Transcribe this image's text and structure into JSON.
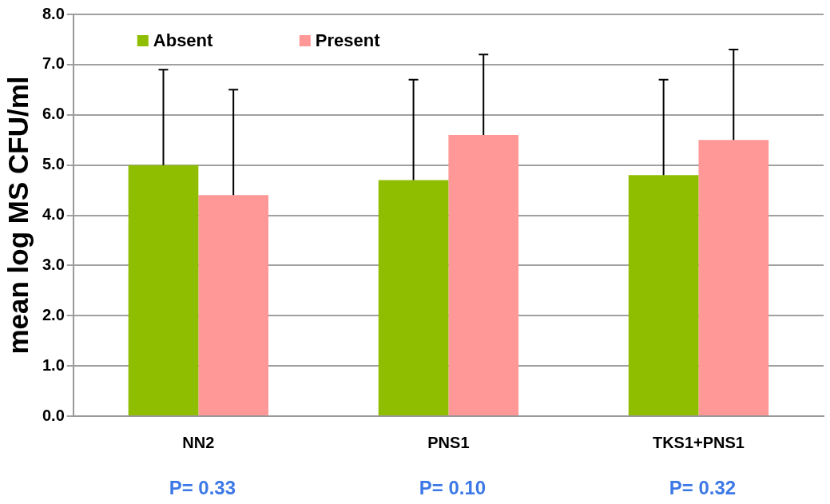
{
  "chart_data": {
    "type": "bar",
    "ylabel": "mean log MS CFU/ml",
    "categories": [
      "NN2",
      "PNS1",
      "TKS1+PNS1"
    ],
    "series": [
      {
        "name": "Absent",
        "color": "#8fbe00",
        "values": [
          5.0,
          4.7,
          4.8
        ],
        "errors": [
          [
            5.0,
            6.9
          ],
          [
            4.7,
            6.7
          ],
          [
            4.8,
            6.7
          ]
        ]
      },
      {
        "name": "Present",
        "color": "#ff9896",
        "values": [
          4.4,
          5.6,
          5.5
        ],
        "errors": [
          [
            4.4,
            6.5
          ],
          [
            5.6,
            7.2
          ],
          [
            5.5,
            7.3
          ]
        ]
      }
    ],
    "ylim": [
      0,
      8
    ],
    "yticks": [
      {
        "value": 0,
        "label": "0.0"
      },
      {
        "value": 1,
        "label": "1.0"
      },
      {
        "value": 2,
        "label": "2.0"
      },
      {
        "value": 3,
        "label": "3.0"
      },
      {
        "value": 4,
        "label": "4.0"
      },
      {
        "value": 5,
        "label": "5.0"
      },
      {
        "value": 6,
        "label": "6.0"
      },
      {
        "value": 7,
        "label": "7.0"
      },
      {
        "value": 8,
        "label": "8.0"
      }
    ],
    "grid": "y",
    "legend": "top left",
    "annotations": [
      "P= 0.33",
      "P= 0.10",
      "P= 0.32"
    ]
  }
}
